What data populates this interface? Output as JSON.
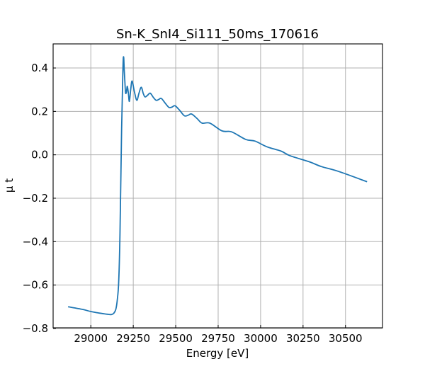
{
  "chart_data": {
    "type": "line",
    "title": "Sn-K_SnI4_Si111_50ms_170616",
    "xlabel": "Energy [eV]",
    "ylabel": "μ t",
    "xlim": [
      28778,
      30718
    ],
    "ylim": [
      -0.797,
      0.511
    ],
    "xticks": [
      29000,
      29250,
      29500,
      29750,
      30000,
      30250,
      30500
    ],
    "xtick_labels": [
      "29000",
      "29250",
      "29500",
      "29750",
      "30000",
      "30250",
      "30500"
    ],
    "yticks": [
      -0.8,
      -0.6,
      -0.4,
      -0.2,
      0.0,
      0.2,
      0.4
    ],
    "ytick_labels": [
      "−0.8",
      "−0.6",
      "−0.4",
      "−0.2",
      "0.0",
      "0.2",
      "0.4"
    ],
    "grid": true,
    "series": [
      {
        "name": "mu_t",
        "color": "#1f77b4",
        "x": [
          28866,
          28950,
          29000,
          29050,
          29093,
          29120,
          29135,
          29147,
          29155,
          29164,
          29172,
          29180,
          29189,
          29193,
          29197,
          29201,
          29205,
          29210,
          29215,
          29221,
          29227,
          29235,
          29243,
          29257,
          29271,
          29284,
          29297,
          29308,
          29319,
          29335,
          29350,
          29368,
          29385,
          29400,
          29415,
          29438,
          29461,
          29478,
          29496,
          29523,
          29551,
          29572,
          29593,
          29625,
          29655,
          29701,
          29773,
          29829,
          29912,
          29968,
          30037,
          30120,
          30176,
          30287,
          30357,
          30454,
          30627
        ],
        "y": [
          -0.7,
          -0.712,
          -0.722,
          -0.729,
          -0.734,
          -0.736,
          -0.73,
          -0.713,
          -0.674,
          -0.59,
          -0.36,
          0.06,
          0.39,
          0.452,
          0.39,
          0.33,
          0.285,
          0.29,
          0.316,
          0.285,
          0.246,
          0.3,
          0.34,
          0.29,
          0.251,
          0.285,
          0.311,
          0.285,
          0.267,
          0.275,
          0.284,
          0.265,
          0.251,
          0.255,
          0.26,
          0.238,
          0.218,
          0.22,
          0.226,
          0.205,
          0.18,
          0.182,
          0.188,
          0.168,
          0.146,
          0.146,
          0.11,
          0.106,
          0.071,
          0.063,
          0.037,
          0.017,
          -0.005,
          -0.032,
          -0.054,
          -0.075,
          -0.124
        ]
      }
    ]
  }
}
